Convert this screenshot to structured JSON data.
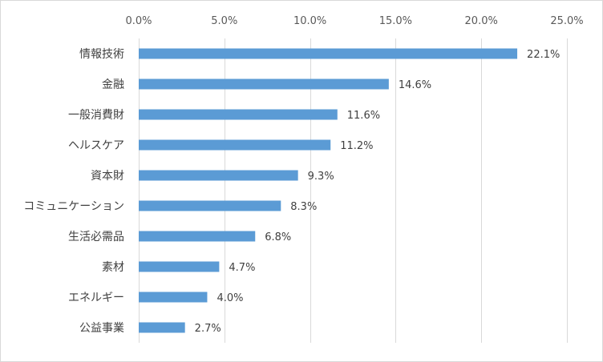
{
  "chart_data": {
    "type": "bar",
    "orientation": "horizontal",
    "categories": [
      "情報技術",
      "金融",
      "一般消費財",
      "ヘルスケア",
      "資本財",
      "コミュニケーション",
      "生活必需品",
      "素材",
      "エネルギー",
      "公益事業"
    ],
    "values": [
      22.1,
      14.6,
      11.6,
      11.2,
      9.3,
      8.3,
      6.8,
      4.7,
      4.0,
      2.7
    ],
    "data_labels": [
      "22.1%",
      "14.6%",
      "11.6%",
      "11.2%",
      "9.3%",
      "8.3%",
      "6.8%",
      "4.7%",
      "4.0%",
      "2.7%"
    ],
    "x_ticks": [
      0,
      5,
      10,
      15,
      20,
      25
    ],
    "x_tick_labels": [
      "0.0%",
      "5.0%",
      "10.0%",
      "15.0%",
      "20.0%",
      "25.0%"
    ],
    "xlim": [
      0,
      25
    ],
    "x_axis_position": "top",
    "grid": "vertical",
    "legend": "none",
    "bar_color": "#5B9BD5",
    "grid_color": "#d9d9d9"
  }
}
